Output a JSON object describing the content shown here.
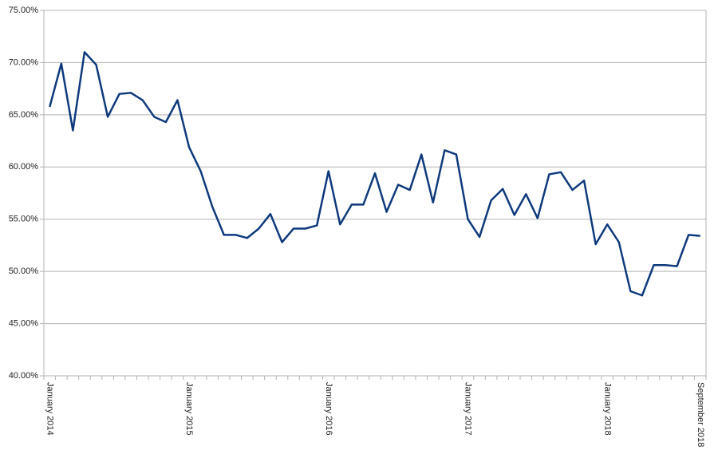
{
  "chart_data": {
    "type": "line",
    "categories": [
      "January 2014",
      null,
      null,
      null,
      null,
      null,
      null,
      null,
      null,
      null,
      null,
      null,
      "January 2015",
      null,
      null,
      null,
      null,
      null,
      null,
      null,
      null,
      null,
      null,
      null,
      "January 2016",
      null,
      null,
      null,
      null,
      null,
      null,
      null,
      null,
      null,
      null,
      null,
      "January 2017",
      null,
      null,
      null,
      null,
      null,
      null,
      null,
      null,
      null,
      null,
      null,
      "January 2018",
      null,
      null,
      null,
      null,
      null,
      null,
      null,
      "September 2018"
    ],
    "values": [
      65.76,
      69.9,
      63.5,
      71.0,
      69.8,
      64.8,
      67.0,
      67.1,
      66.4,
      64.8,
      64.3,
      66.4,
      61.9,
      59.6,
      56.2,
      53.5,
      53.5,
      53.2,
      54.1,
      55.5,
      52.8,
      54.1,
      54.1,
      54.4,
      59.6,
      54.5,
      56.4,
      56.4,
      59.4,
      55.7,
      58.3,
      57.8,
      61.2,
      56.6,
      61.6,
      61.2,
      55.0,
      53.3,
      56.8,
      57.9,
      55.4,
      57.4,
      55.1,
      59.3,
      59.5,
      57.8,
      58.7,
      52.6,
      54.5,
      52.8,
      48.1,
      47.7,
      50.6,
      50.6,
      50.5,
      53.5,
      53.4
    ],
    "color": "#0e3a7c",
    "ylim": [
      40,
      75
    ],
    "yticks": [
      {
        "value": 40,
        "label": "40.00%"
      },
      {
        "value": 45,
        "label": "45.00%"
      },
      {
        "value": 50,
        "label": "50.00%"
      },
      {
        "value": 55,
        "label": "55.00%"
      },
      {
        "value": 60,
        "label": "60.00%"
      },
      {
        "value": 65,
        "label": "65.00%"
      },
      {
        "value": 70,
        "label": "70.00%"
      },
      {
        "value": 75,
        "label": "75.00%"
      }
    ],
    "grid": true
  }
}
